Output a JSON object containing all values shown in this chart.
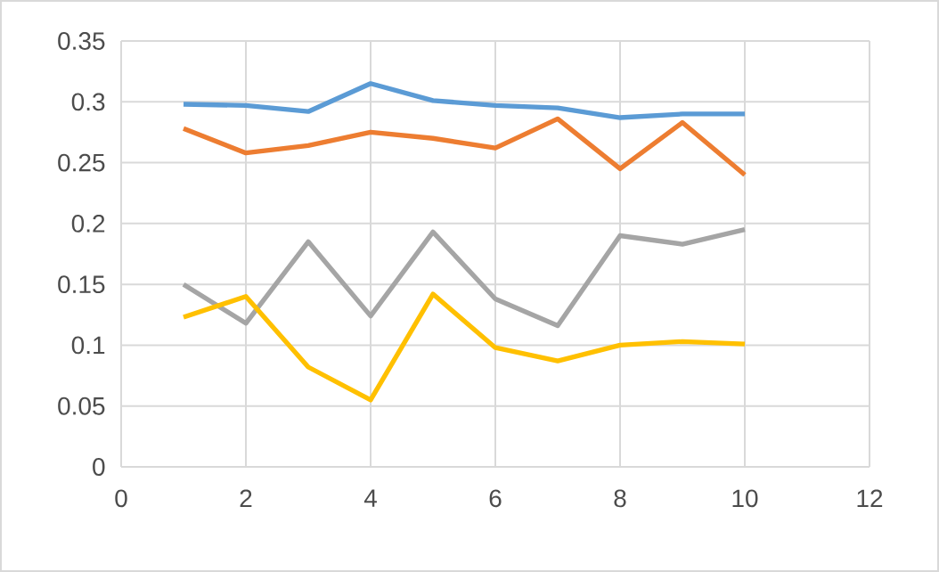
{
  "chart_data": {
    "type": "line",
    "x": [
      1,
      2,
      3,
      4,
      5,
      6,
      7,
      8,
      9,
      10
    ],
    "series": [
      {
        "color": "#5b9bd5",
        "values": [
          0.298,
          0.297,
          0.292,
          0.315,
          0.301,
          0.297,
          0.295,
          0.287,
          0.29,
          0.29
        ]
      },
      {
        "color": "#ed7d31",
        "values": [
          0.278,
          0.258,
          0.264,
          0.275,
          0.27,
          0.262,
          0.286,
          0.245,
          0.283,
          0.24
        ]
      },
      {
        "color": "#a5a5a5",
        "values": [
          0.15,
          0.118,
          0.185,
          0.124,
          0.193,
          0.138,
          0.116,
          0.19,
          0.183,
          0.195
        ]
      },
      {
        "color": "#ffc000",
        "values": [
          0.123,
          0.14,
          0.082,
          0.055,
          0.142,
          0.098,
          0.087,
          0.1,
          0.103,
          0.101
        ]
      }
    ],
    "xlim": [
      0,
      12
    ],
    "xticks": [
      0,
      2,
      4,
      6,
      8,
      10,
      12
    ],
    "ylim": [
      0,
      0.35
    ],
    "yticks": [
      0,
      0.05,
      0.1,
      0.15,
      0.2,
      0.25,
      0.3,
      0.35
    ],
    "grid": true,
    "marker": "none",
    "line_style": "solid"
  }
}
